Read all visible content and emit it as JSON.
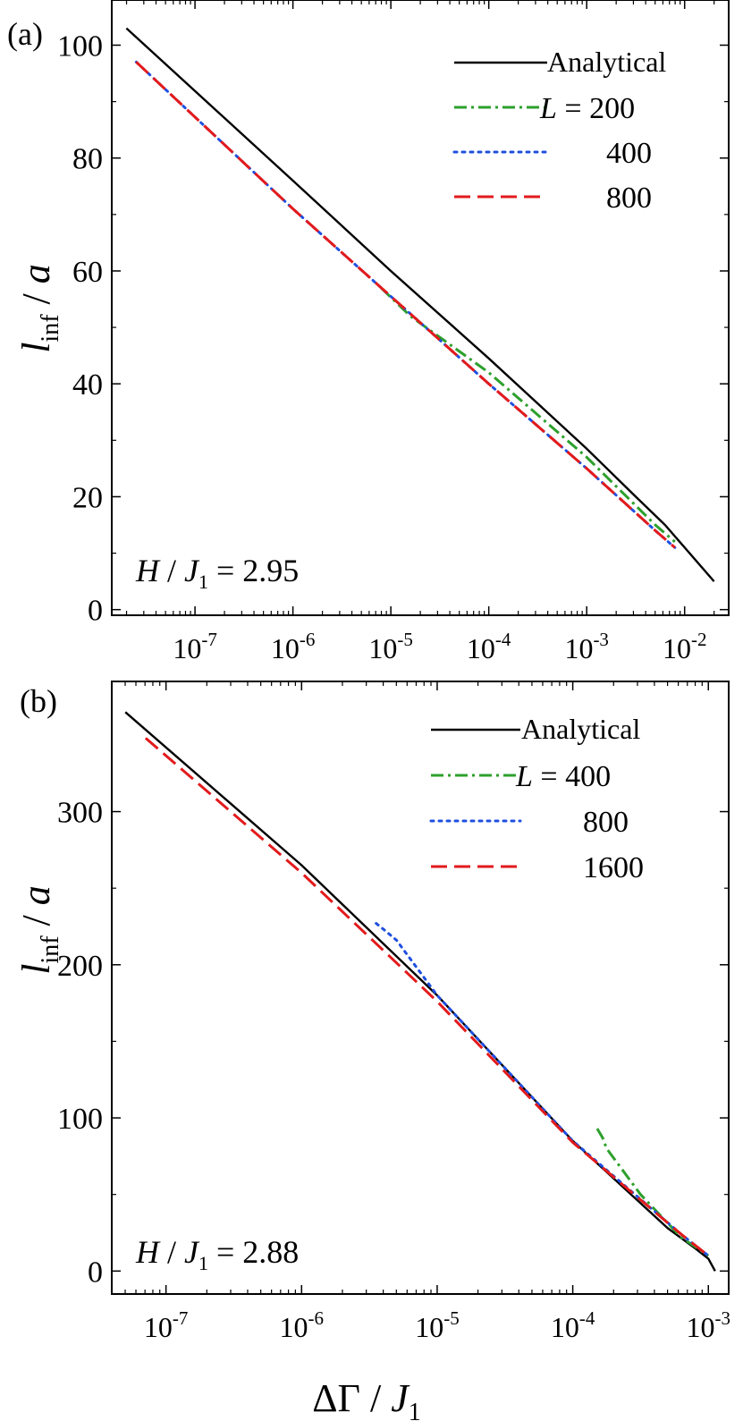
{
  "chart_data": [
    {
      "type": "line",
      "panel_label": "(a)",
      "xscale": "log",
      "xlim_log10": [
        -7.85,
        -1.55
      ],
      "ylim": [
        -1,
        108
      ],
      "ylabel_main": "l",
      "ylabel_sub": "inf",
      "ylabel_tail": " / a",
      "y_ticks": [
        0,
        20,
        40,
        60,
        80,
        100
      ],
      "y_tick_labels": [
        "0",
        "20",
        "40",
        "60",
        "80",
        "100"
      ],
      "x_ticks_exp": [
        -7,
        -6,
        -5,
        -4,
        -3,
        -2
      ],
      "x_tick_labels": [
        "-7",
        "-6",
        "-5",
        "-4",
        "-3",
        "-2"
      ],
      "annotation": {
        "h": "H",
        "mid": " / J",
        "sub": "1",
        "tail": " = 2.95"
      },
      "legend": {
        "placement": "top-right",
        "prefix": "L",
        "eq": " =",
        "entries": [
          {
            "label": "Analytical",
            "color": "#000000",
            "style": "solid"
          },
          {
            "label": "200",
            "color": "#2ca02c",
            "style": "dashdot"
          },
          {
            "label": "400",
            "color": "#1f4fe0",
            "style": "dotted"
          },
          {
            "label": "800",
            "color": "#e31a1c",
            "style": "dashed"
          }
        ]
      },
      "series": [
        {
          "name": "Analytical",
          "color": "#000000",
          "style": "solid",
          "x_log10": [
            -7.7,
            -6,
            -5,
            -4,
            -3,
            -2.5,
            -2.2,
            -1.7
          ],
          "y": [
            103,
            76,
            60,
            44.5,
            28.5,
            20,
            15,
            5
          ]
        },
        {
          "name": "L = 200",
          "color": "#2ca02c",
          "style": "dashdot",
          "x_log10": [
            -5.1,
            -4.8,
            -4.0,
            -3.0,
            -2.3,
            -2.1
          ],
          "y": [
            57,
            52,
            42,
            27,
            15,
            12
          ]
        },
        {
          "name": "L = 400",
          "color": "#1f4fe0",
          "style": "dotted",
          "x_log10": [
            -7.6,
            -6,
            -5,
            -4,
            -3,
            -2.3,
            -2.1
          ],
          "y": [
            97,
            71,
            55.5,
            40,
            25,
            14,
            11
          ]
        },
        {
          "name": "L = 800",
          "color": "#e31a1c",
          "style": "dashed",
          "x_log10": [
            -7.6,
            -6,
            -5,
            -4,
            -3,
            -2.3,
            -2.1
          ],
          "y": [
            97,
            71,
            55.5,
            40,
            25,
            14,
            11
          ]
        }
      ]
    },
    {
      "type": "line",
      "panel_label": "(b)",
      "xscale": "log",
      "xlim_log10": [
        -7.4,
        -2.85
      ],
      "ylim": [
        -15,
        385
      ],
      "ylabel_main": "l",
      "ylabel_sub": "inf",
      "ylabel_tail": " / a",
      "y_ticks": [
        0,
        100,
        200,
        300
      ],
      "y_tick_labels": [
        "0",
        "100",
        "200",
        "300"
      ],
      "x_ticks_exp": [
        -7,
        -6,
        -5,
        -4,
        -3
      ],
      "x_tick_labels": [
        "-7",
        "-6",
        "-5",
        "-4",
        "-3"
      ],
      "xlabel_delta": "ΔΓ",
      "xlabel_mid": " / J",
      "xlabel_sub": "1",
      "annotation": {
        "h": "H",
        "mid": " / J",
        "sub": "1",
        "tail": " = 2.88"
      },
      "legend": {
        "placement": "top-right",
        "prefix": "L",
        "eq": " =",
        "entries": [
          {
            "label": "Analytical",
            "color": "#000000",
            "style": "solid"
          },
          {
            "label": "400",
            "color": "#2ca02c",
            "style": "dashdot"
          },
          {
            "label": "800",
            "color": "#1f4fe0",
            "style": "dotted"
          },
          {
            "label": "1600",
            "color": "#e31a1c",
            "style": "dashed"
          }
        ]
      },
      "series": [
        {
          "name": "Analytical",
          "color": "#000000",
          "style": "solid",
          "x_log10": [
            -7.3,
            -6,
            -5,
            -4,
            -3.3,
            -3.1,
            -3.0,
            -2.95
          ],
          "y": [
            365,
            265,
            180,
            85,
            28,
            15,
            8,
            0
          ]
        },
        {
          "name": "L = 400",
          "color": "#2ca02c",
          "style": "dashdot",
          "x_log10": [
            -3.82,
            -3.78,
            -3.75,
            -3.5,
            -3.2,
            -3.0
          ],
          "y": [
            93,
            87,
            80,
            50,
            22,
            10
          ]
        },
        {
          "name": "L = 800",
          "color": "#1f4fe0",
          "style": "dotted",
          "x_log10": [
            -5.45,
            -5.38,
            -5.3,
            -5,
            -4,
            -3.2,
            -3.0
          ],
          "y": [
            227,
            222,
            216,
            180,
            85,
            24,
            10
          ]
        },
        {
          "name": "L = 1600",
          "color": "#e31a1c",
          "style": "dashed",
          "x_log10": [
            -7.15,
            -6,
            -5,
            -4,
            -3.2,
            -3.0
          ],
          "y": [
            348,
            260,
            176,
            84,
            24,
            10
          ]
        }
      ]
    }
  ]
}
